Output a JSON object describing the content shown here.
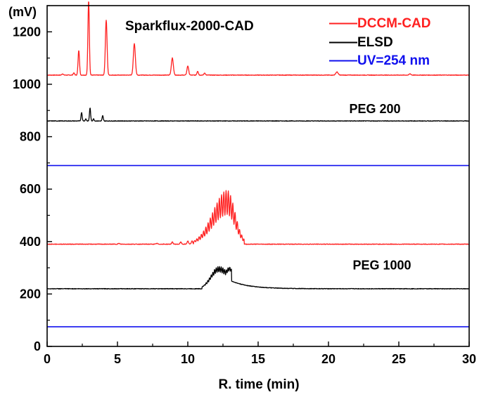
{
  "chart_data": {
    "type": "line",
    "title": "Sparkflux-2000-CAD",
    "xlabel": "R. time (min)",
    "ylabel": "(mV)",
    "xlim": [
      0,
      30
    ],
    "ylim": [
      0,
      1300
    ],
    "xticks": [
      0,
      5,
      10,
      15,
      20,
      25,
      30
    ],
    "xtick_labels": [
      "0",
      "5",
      "10",
      "15",
      "20",
      "25",
      "30"
    ],
    "yticks": [
      0,
      200,
      400,
      600,
      800,
      1000,
      1200
    ],
    "ytick_labels": [
      "0",
      "200",
      "400",
      "600",
      "800",
      "1000",
      "1200"
    ],
    "grid": false,
    "legend_position": "top-right",
    "legend": [
      {
        "name": "DCCM-CAD",
        "color": "#ff2020"
      },
      {
        "name": "ELSD",
        "color": "#000000"
      },
      {
        "name": "UV=254 nm",
        "color": "#1010ee"
      }
    ],
    "annotations": [
      {
        "text": "PEG 200",
        "x": 23.3,
        "y": 890
      },
      {
        "text": "PEG 1000",
        "x": 23.8,
        "y": 293
      }
    ],
    "series": [
      {
        "sample": "PEG 200",
        "detector": "DCCM-CAD",
        "color": "#ff2020",
        "baseline": 1035,
        "peaks": [
          [
            1.1,
            5,
            0.05
          ],
          [
            1.9,
            8,
            0.05
          ],
          [
            2.25,
            95,
            0.05
          ],
          [
            2.95,
            285,
            0.05
          ],
          [
            4.2,
            210,
            0.06
          ],
          [
            6.2,
            120,
            0.07
          ],
          [
            8.9,
            65,
            0.07
          ],
          [
            10.0,
            35,
            0.06
          ],
          [
            10.7,
            15,
            0.05
          ],
          [
            11.2,
            8,
            0.05
          ],
          [
            20.6,
            12,
            0.08
          ],
          [
            25.8,
            5,
            0.06
          ]
        ]
      },
      {
        "sample": "PEG 200",
        "detector": "ELSD",
        "color": "#000000",
        "baseline": 860,
        "peaks": [
          [
            2.45,
            33,
            0.04
          ],
          [
            2.75,
            8,
            0.04
          ],
          [
            3.05,
            50,
            0.04
          ],
          [
            3.3,
            8,
            0.04
          ],
          [
            3.95,
            20,
            0.04
          ]
        ]
      },
      {
        "sample": "PEG 200",
        "detector": "UV=254 nm",
        "color": "#1010ee",
        "baseline": 690,
        "peaks": []
      },
      {
        "sample": "PEG 1000",
        "detector": "DCCM-CAD",
        "color": "#ff2020",
        "baseline": 390,
        "peaks": [
          [
            5.1,
            3,
            0.05
          ],
          [
            7.8,
            3,
            0.05
          ],
          [
            8.9,
            8,
            0.05
          ],
          [
            9.5,
            8,
            0.05
          ],
          [
            10.0,
            12,
            0.05
          ],
          [
            10.3,
            12,
            0.05
          ]
        ],
        "envelope": {
          "center": 12.8,
          "height": 205,
          "sigma_left": 1.0,
          "sigma_right": 0.55,
          "ripple_period": 0.16,
          "ripple_depth": 0.45,
          "start": 10.4,
          "end": 14.0
        }
      },
      {
        "sample": "PEG 1000",
        "detector": "ELSD",
        "color": "#000000",
        "baseline": 220,
        "peaks": [],
        "envelope": {
          "center": 12.2,
          "height": 85,
          "sigma_left": 0.55,
          "sigma_right": 0.8,
          "ripple_period": 0.12,
          "ripple_depth": 0.25,
          "start": 11.0,
          "end": 13.1
        },
        "tail": {
          "start": 12.7,
          "height": 40,
          "decay": 1.3
        }
      },
      {
        "sample": "PEG 1000",
        "detector": "UV=254 nm",
        "color": "#1010ee",
        "baseline": 75,
        "peaks": []
      }
    ]
  }
}
